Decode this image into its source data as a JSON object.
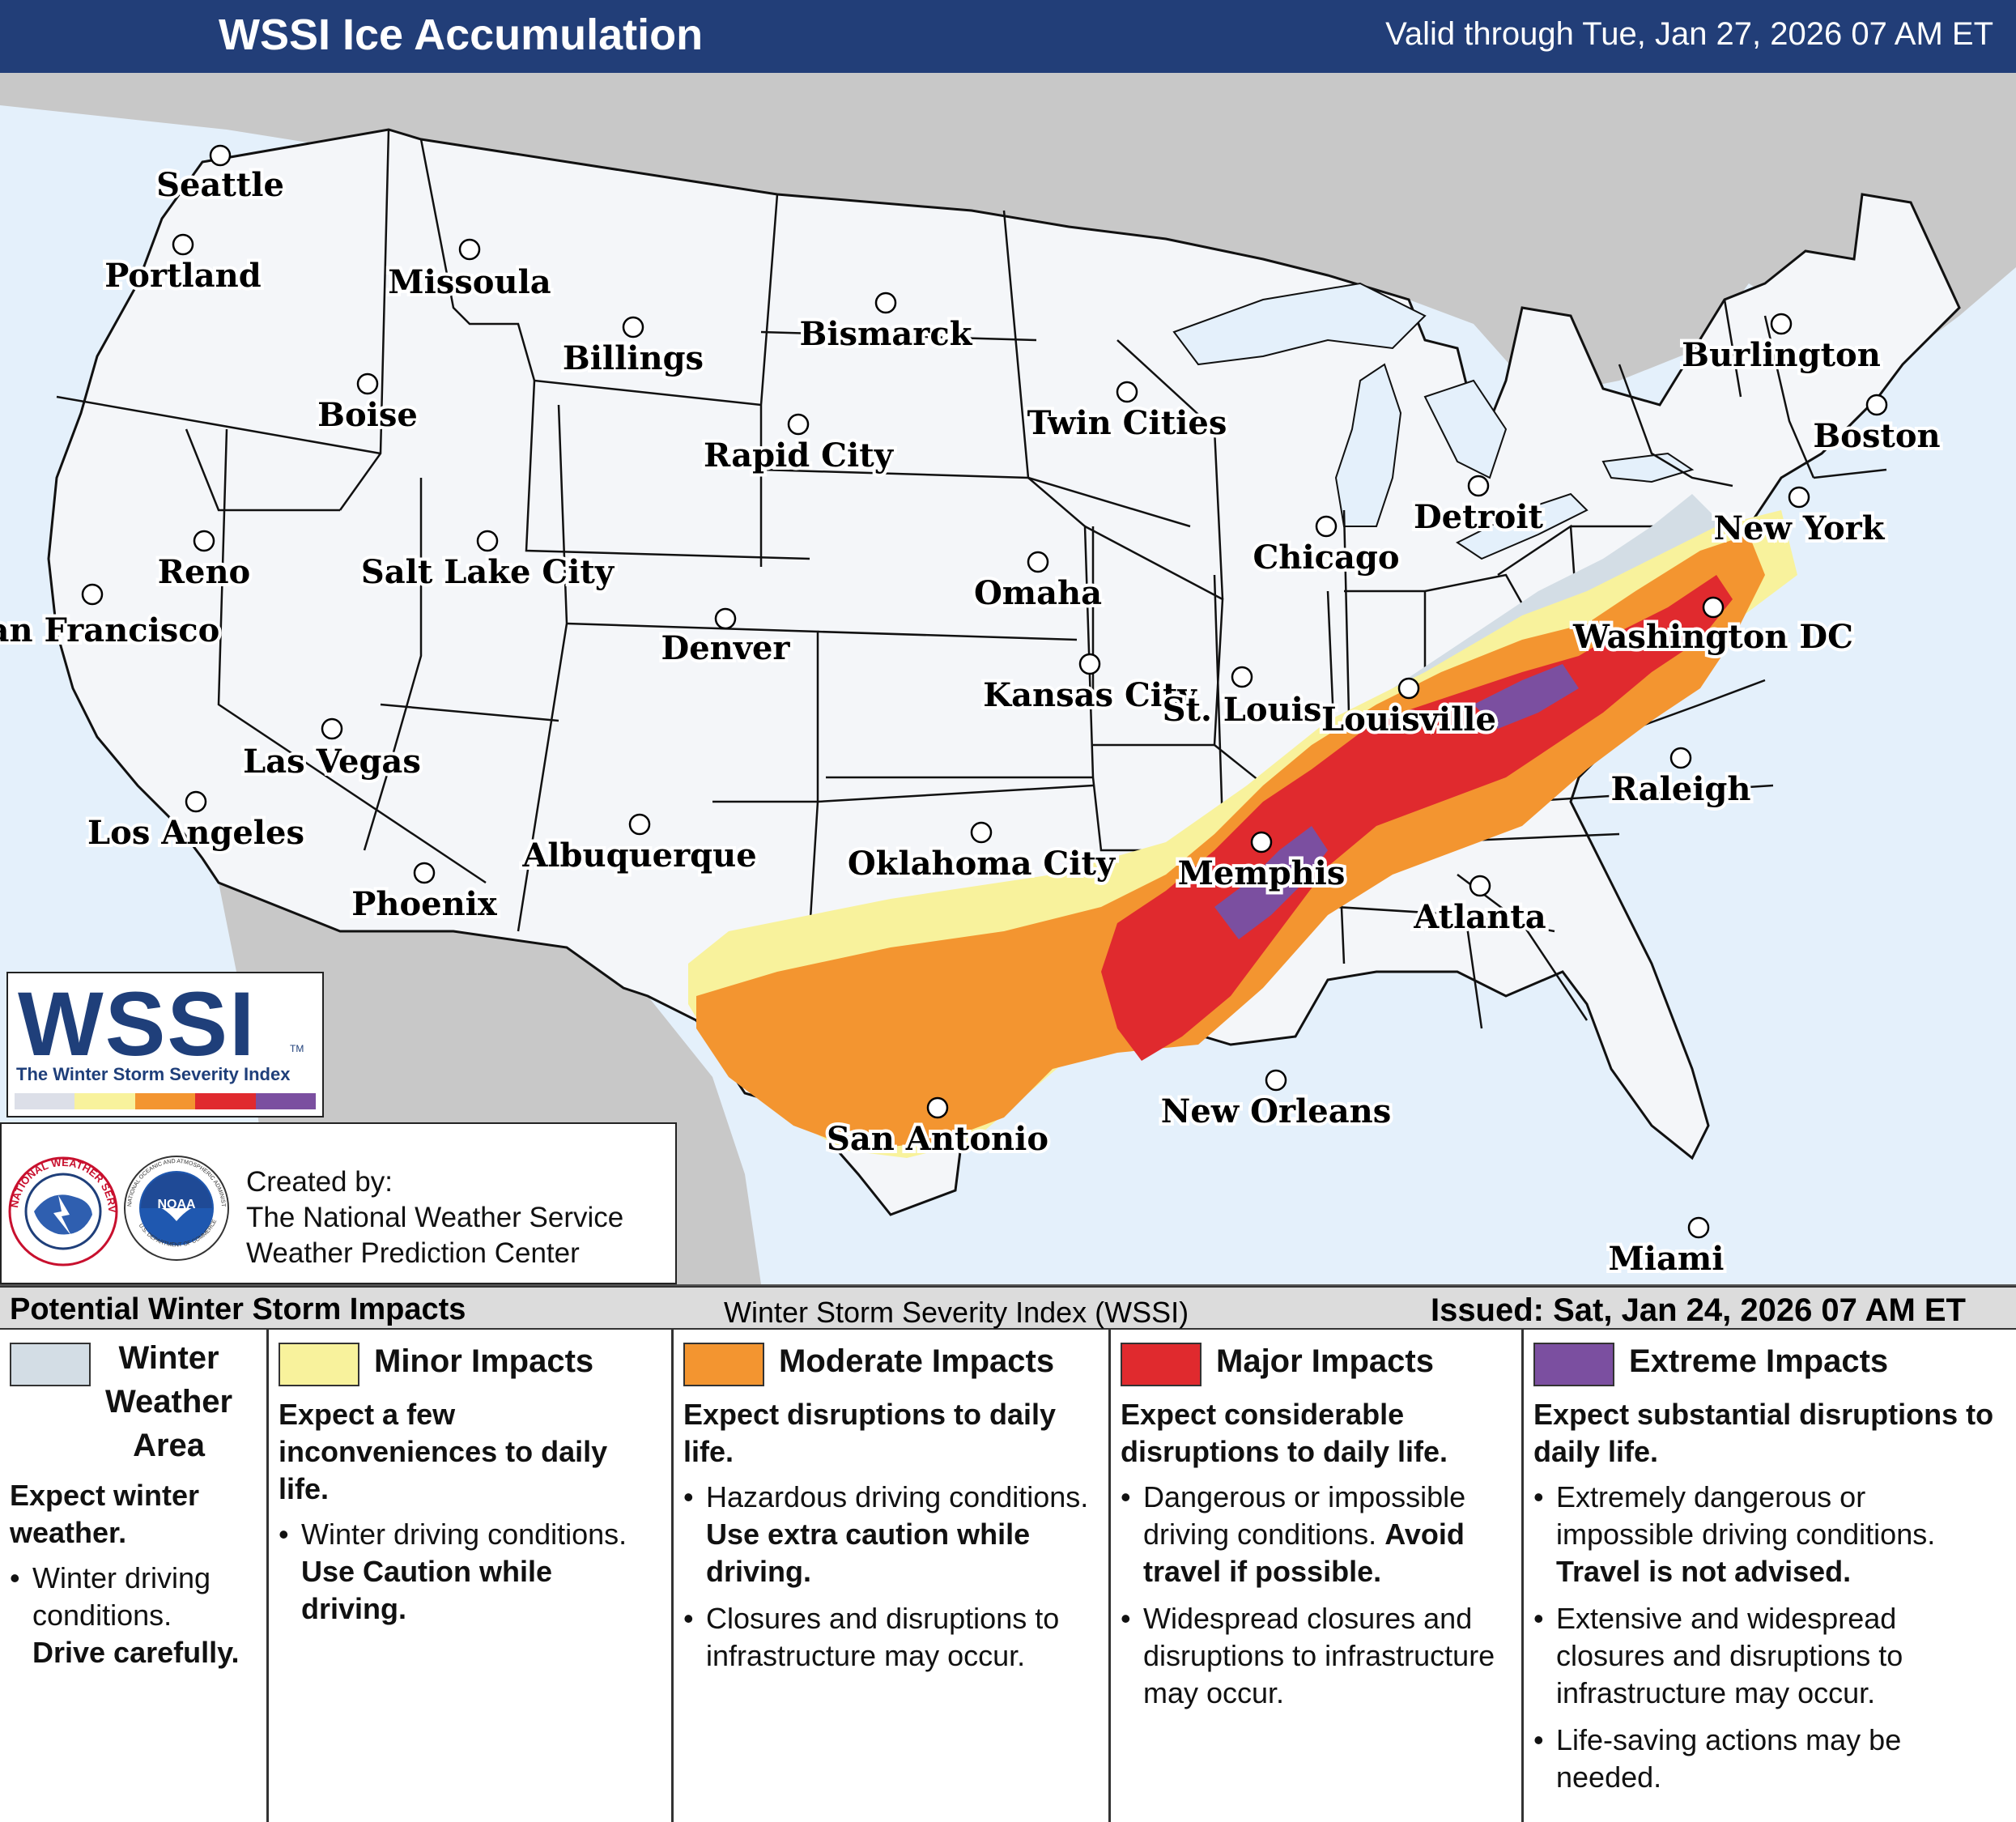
{
  "header": {
    "title": "WSSI Ice Accumulation",
    "valid": "Valid through Tue, Jan 27, 2026 07 AM ET"
  },
  "map": {
    "cities": [
      "Seattle",
      "Portland",
      "Missoula",
      "Boise",
      "Billings",
      "Bismarck",
      "Rapid City",
      "Twin Cities",
      "Reno",
      "San Francisco",
      "Salt Lake City",
      "Denver",
      "Omaha",
      "Chicago",
      "Detroit",
      "Burlington",
      "Boston",
      "New York",
      "Washington DC",
      "Kansas City",
      "St. Louis",
      "Louisville",
      "Las Vegas",
      "Los Angeles",
      "Phoenix",
      "Albuquerque",
      "Oklahoma City",
      "Memphis",
      "Raleigh",
      "Atlanta",
      "San Antonio",
      "New Orleans",
      "Miami"
    ],
    "colors": {
      "water": "#e4f0fb",
      "canada_mexico": "#c8c8c8",
      "land": "#f4f6f9",
      "winter_weather_area": "#d3dde5",
      "minor": "#f8f29c",
      "moderate": "#f39530",
      "major": "#e02a2e",
      "extreme": "#7b4fa0"
    }
  },
  "logo": {
    "big": "WSSI",
    "tm": "TM",
    "subtitle": "The Winter Storm Severity Index",
    "scale_colors": [
      "#dcdfe8",
      "#f8f29c",
      "#f39530",
      "#e02a2e",
      "#7b4fa0"
    ]
  },
  "credits": {
    "line1": "Created by:",
    "line2": "The National Weather Service",
    "line3": "Weather Prediction Center",
    "nws_ring": "NATIONAL WEATHER SERVICE",
    "noaa_ring": "NATIONAL OCEANIC AND ATMOSPHERIC ADMINISTRATION",
    "noaa_ring_bottom": "U.S. DEPARTMENT OF COMMERCE",
    "noaa_center": "NOAA"
  },
  "legend_bar": {
    "left": "Potential Winter Storm Impacts",
    "center": "Winter Storm Severity Index (WSSI)",
    "right": "Issued: Sat, Jan 24, 2026 07 AM ET"
  },
  "legend": {
    "winter": {
      "color": "#d3dde5",
      "title_1": "Winter",
      "title_2": "Weather",
      "title_3": "Area",
      "expect": "Expect winter weather.",
      "b1_text": "Winter driving conditions.",
      "b1_bold": "Drive carefully."
    },
    "minor": {
      "color": "#f8f29c",
      "title": "Minor Impacts",
      "expect": "Expect a few inconveniences to daily life.",
      "b1_text": "Winter driving conditions.",
      "b1_bold": "Use Caution while driving."
    },
    "moderate": {
      "color": "#f39530",
      "title": "Moderate Impacts",
      "expect": "Expect disruptions to daily life.",
      "b1_text": "Hazardous driving conditions.",
      "b1_bold": "Use extra caution while driving.",
      "b2_text": "Closures and disruptions to infrastructure may occur."
    },
    "major": {
      "color": "#e02a2e",
      "title": "Major Impacts",
      "expect": "Expect considerable disruptions to daily life.",
      "b1_text": "Dangerous or impossible driving conditions.",
      "b1_bold": "Avoid travel if possible.",
      "b2_text": "Widespread closures and disruptions to infrastructure may occur."
    },
    "extreme": {
      "color": "#7b4fa0",
      "title": "Extreme Impacts",
      "expect": "Expect substantial disruptions to daily life.",
      "b1_text": "Extremely dangerous or impossible driving conditions.",
      "b1_bold": "Travel is not advised.",
      "b2_text": "Extensive and widespread closures and disruptions to infrastructure may occur.",
      "b3_text": "Life-saving actions may be needed."
    }
  }
}
